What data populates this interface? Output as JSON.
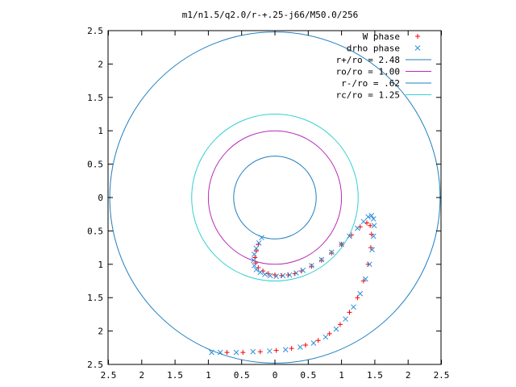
{
  "chart_data": {
    "type": "scatter",
    "title": "m1/n1.5/q2.0/r-+.25-j66/M50.0/256",
    "xlabel": "",
    "ylabel": "",
    "xlim": [
      -2.5,
      2.5
    ],
    "ylim": [
      -2.5,
      2.5
    ],
    "x_tick_labels": [
      "2.5",
      "2",
      "1.5",
      "1",
      "0.5",
      "0",
      "0.5",
      "1",
      "1.5",
      "2",
      "2.5"
    ],
    "y_tick_labels": [
      "2.5",
      "2",
      "1.5",
      "1",
      "0.5",
      "0",
      "0.5",
      "1",
      "1.5",
      "2",
      "2.5"
    ],
    "x_ticks": [
      -2.5,
      -2,
      -1.5,
      -1,
      -0.5,
      0,
      0.5,
      1,
      1.5,
      2,
      2.5
    ],
    "y_ticks": [
      2.5,
      2,
      1.5,
      1,
      0.5,
      0,
      -0.5,
      -1,
      -1.5,
      -2,
      -2.5
    ],
    "grid": false,
    "legend_position": "top-right",
    "circles": [
      {
        "name": "r+/ro = 2.48",
        "radius": 2.48,
        "color": "#1f7fbf"
      },
      {
        "name": "ro/ro = 1.00",
        "radius": 1.0,
        "color": "#b62cb6"
      },
      {
        "name": "r-/ro = .62",
        "radius": 0.62,
        "color": "#1f7fbf"
      },
      {
        "name": "rc/ro = 1.25",
        "radius": 1.25,
        "color": "#33d0d0"
      }
    ],
    "series": [
      {
        "name": "W phase",
        "marker": "+",
        "color": "#ff0000",
        "x": [
          -0.25,
          -0.28,
          -0.3,
          -0.29,
          -0.25,
          -0.18,
          -0.1,
          0.0,
          0.1,
          0.2,
          0.3,
          0.4,
          0.55,
          0.7,
          0.85,
          1.0,
          1.15,
          1.28,
          1.38,
          1.43,
          1.45,
          1.44,
          1.4,
          1.33,
          1.24,
          1.12,
          0.98,
          0.82,
          0.65,
          0.46,
          0.25,
          0.02,
          -0.22,
          -0.48,
          -0.72
        ],
        "y": [
          -0.7,
          -0.8,
          -0.9,
          -0.98,
          -1.05,
          -1.1,
          -1.14,
          -1.16,
          -1.17,
          -1.16,
          -1.14,
          -1.1,
          -1.03,
          -0.94,
          -0.83,
          -0.7,
          -0.56,
          -0.44,
          -0.38,
          -0.42,
          -0.55,
          -0.75,
          -1.0,
          -1.25,
          -1.5,
          -1.72,
          -1.9,
          -2.04,
          -2.14,
          -2.21,
          -2.26,
          -2.29,
          -2.31,
          -2.32,
          -2.32
        ]
      },
      {
        "name": "drho phase",
        "marker": "x",
        "color": "#2f8fd9",
        "x": [
          -0.2,
          -0.24,
          -0.28,
          -0.31,
          -0.32,
          -0.31,
          -0.28,
          -0.22,
          -0.15,
          -0.07,
          0.02,
          0.12,
          0.22,
          0.32,
          0.42,
          0.55,
          0.7,
          0.85,
          1.0,
          1.12,
          1.24,
          1.33,
          1.4,
          1.45,
          1.48,
          1.49,
          1.48,
          1.46,
          1.42,
          1.36,
          1.28,
          1.18,
          1.06,
          0.92,
          0.76,
          0.58,
          0.38,
          0.16,
          -0.08,
          -0.33,
          -0.58,
          -0.82,
          -0.95
        ],
        "y": [
          -0.6,
          -0.68,
          -0.76,
          -0.85,
          -0.94,
          -1.02,
          -1.08,
          -1.12,
          -1.15,
          -1.17,
          -1.18,
          -1.17,
          -1.16,
          -1.13,
          -1.09,
          -1.02,
          -0.93,
          -0.82,
          -0.7,
          -0.58,
          -0.46,
          -0.36,
          -0.29,
          -0.27,
          -0.32,
          -0.42,
          -0.58,
          -0.78,
          -1.0,
          -1.22,
          -1.44,
          -1.64,
          -1.82,
          -1.97,
          -2.09,
          -2.18,
          -2.24,
          -2.28,
          -2.3,
          -2.31,
          -2.32,
          -2.32,
          -2.32
        ]
      }
    ]
  }
}
